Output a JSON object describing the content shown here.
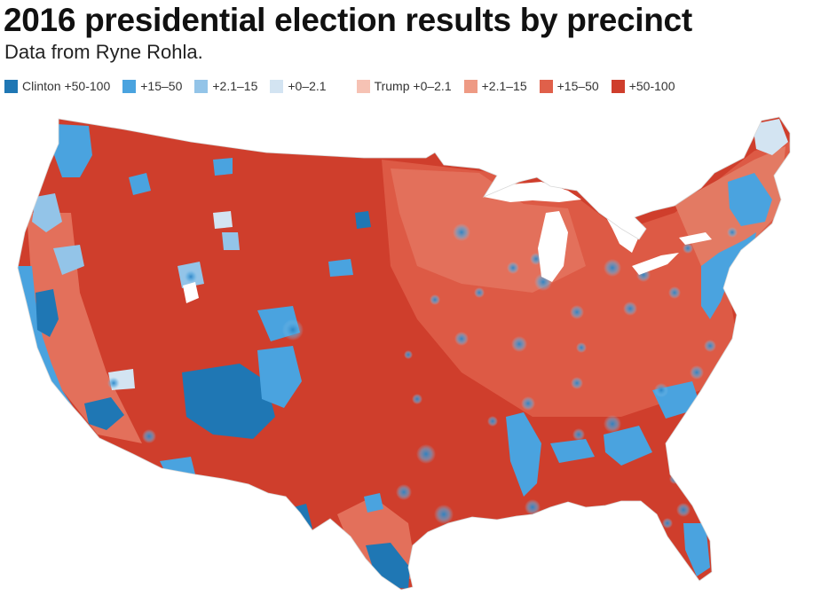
{
  "title": "2016 presidential election results by precinct",
  "subtitle": "Data from Ryne Rohla.",
  "legend": [
    {
      "label": "Clinton +50-100",
      "color": "#1f77b4"
    },
    {
      "label": "+15–50",
      "color": "#4aa3df"
    },
    {
      "label": "+2.1–15",
      "color": "#93c4e8"
    },
    {
      "label": "+0–2.1",
      "color": "#d3e4f2"
    },
    {
      "label": "Trump +0–2.1",
      "color": "#f6c2b4"
    },
    {
      "label": "+2.1–15",
      "color": "#ee9a84"
    },
    {
      "label": "+15–50",
      "color": "#e0604a"
    },
    {
      "label": "+50-100",
      "color": "#cf3e2c"
    }
  ]
}
